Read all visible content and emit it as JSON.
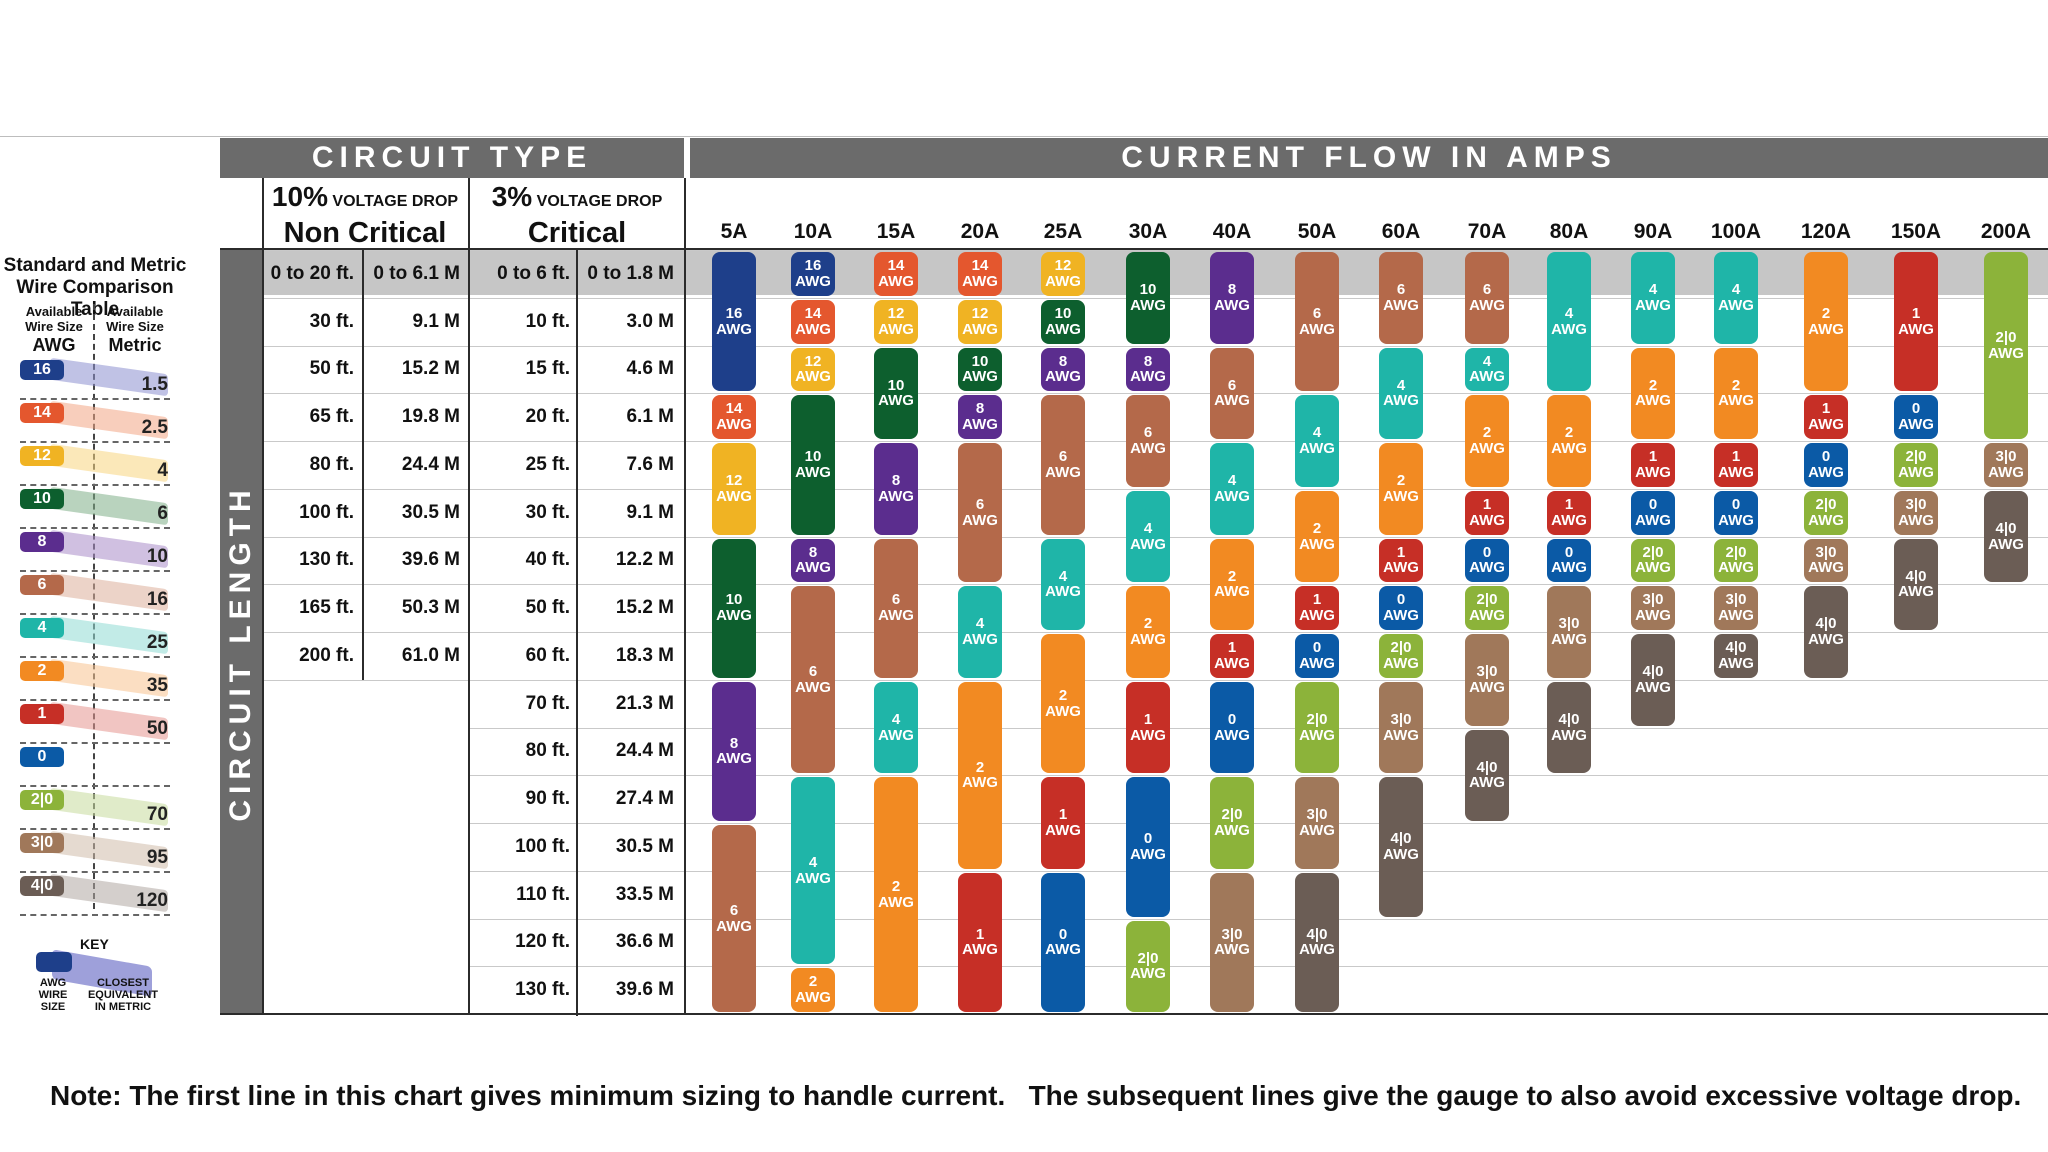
{
  "sidebar": {
    "title_line1": "Standard and Metric",
    "title_line2": "Wire Comparison Table",
    "col1_line1": "Available",
    "col1_line2": "Wire Size",
    "col1_head": "AWG",
    "col2_line1": "Available",
    "col2_line2": "Wire Size",
    "col2_head": "Metric",
    "key_title": "KEY",
    "key_left_line1": "AWG",
    "key_left_line2": "WIRE",
    "key_left_line3": "SIZE",
    "key_right_line1": "CLOSEST",
    "key_right_line2": "EQUIVALENT",
    "key_right_line3": "IN METRIC",
    "rows": [
      {
        "awg": "16",
        "metric": "1.5",
        "color": "#1e3f8a",
        "band": "#8d8fd0"
      },
      {
        "awg": "14",
        "metric": "2.5",
        "color": "#e4572e",
        "band": "#f3a585"
      },
      {
        "awg": "12",
        "metric": "4",
        "color": "#f0b323",
        "band": "#f7d680"
      },
      {
        "awg": "10",
        "metric": "6",
        "color": "#0d5f2e",
        "band": "#7fae88"
      },
      {
        "awg": "8",
        "metric": "10",
        "color": "#5b2d8e",
        "band": "#a98cc9"
      },
      {
        "awg": "6",
        "metric": "16",
        "color": "#b4694a",
        "band": "#dcae9a"
      },
      {
        "awg": "4",
        "metric": "25",
        "color": "#1fb5a8",
        "band": "#8fdad3"
      },
      {
        "awg": "2",
        "metric": "35",
        "color": "#f28a22",
        "band": "#f8c390"
      },
      {
        "awg": "1",
        "metric": "50",
        "color": "#c62f26",
        "band": "#e69690"
      },
      {
        "awg": "0",
        "metric": "",
        "color": "#0b5aa6",
        "band": ""
      },
      {
        "awg": "2|0",
        "metric": "70",
        "color": "#8cb33a",
        "band": "#c6da9c"
      },
      {
        "awg": "3|0",
        "metric": "95",
        "color": "#a0785a",
        "band": "#cfbba9"
      },
      {
        "awg": "4|0",
        "metric": "120",
        "color": "#6b5d55",
        "band": "#b0a8a3"
      }
    ]
  },
  "headers": {
    "circuit_type": "CIRCUIT TYPE",
    "current_flow": "CURRENT FLOW IN AMPS",
    "circuit_length": "CIRCUIT LENGTH",
    "noncrit_pct": "10%",
    "noncrit_small": "VOLTAGE DROP",
    "noncrit_label": "Non Critical",
    "crit_pct": "3%",
    "crit_small": "VOLTAGE DROP",
    "crit_label": "Critical"
  },
  "amps": [
    "5A",
    "10A",
    "15A",
    "20A",
    "25A",
    "30A",
    "40A",
    "50A",
    "60A",
    "70A",
    "80A",
    "90A",
    "100A",
    "120A",
    "150A",
    "200A"
  ],
  "noncritical_rows": [
    {
      "ft": "0 to 20 ft.",
      "m": "0 to 6.1 M"
    },
    {
      "ft": "30 ft.",
      "m": "9.1 M"
    },
    {
      "ft": "50 ft.",
      "m": "15.2 M"
    },
    {
      "ft": "65 ft.",
      "m": "19.8 M"
    },
    {
      "ft": "80 ft.",
      "m": "24.4 M"
    },
    {
      "ft": "100 ft.",
      "m": "30.5 M"
    },
    {
      "ft": "130 ft.",
      "m": "39.6 M"
    },
    {
      "ft": "165 ft.",
      "m": "50.3 M"
    },
    {
      "ft": "200 ft.",
      "m": "61.0 M"
    }
  ],
  "critical_rows": [
    {
      "ft": "0 to 6 ft.",
      "m": "0 to 1.8 M"
    },
    {
      "ft": "10 ft.",
      "m": "3.0 M"
    },
    {
      "ft": "15 ft.",
      "m": "4.6 M"
    },
    {
      "ft": "20 ft.",
      "m": "6.1 M"
    },
    {
      "ft": "25 ft.",
      "m": "7.6 M"
    },
    {
      "ft": "30 ft.",
      "m": "9.1 M"
    },
    {
      "ft": "40 ft.",
      "m": "12.2 M"
    },
    {
      "ft": "50 ft.",
      "m": "15.2 M"
    },
    {
      "ft": "60 ft.",
      "m": "18.3 M"
    },
    {
      "ft": "70 ft.",
      "m": "21.3 M"
    },
    {
      "ft": "80 ft.",
      "m": "24.4 M"
    },
    {
      "ft": "90 ft.",
      "m": "27.4 M"
    },
    {
      "ft": "100 ft.",
      "m": "30.5 M"
    },
    {
      "ft": "110 ft.",
      "m": "33.5 M"
    },
    {
      "ft": "120 ft.",
      "m": "36.6 M"
    },
    {
      "ft": "130 ft.",
      "m": "39.6 M"
    }
  ],
  "awg_unit": "AWG",
  "gauge_colors": {
    "16": "#1e3f8a",
    "14": "#e4572e",
    "12": "#f0b323",
    "10": "#0d5f2e",
    "8": "#5b2d8e",
    "6": "#b4694a",
    "4": "#1fb5a8",
    "2": "#f28a22",
    "1": "#c62f26",
    "0": "#0b5aa6",
    "2|0": "#8cb33a",
    "3|0": "#a0785a",
    "4|0": "#6b5d55"
  },
  "wire_columns": [
    {
      "amp": "5A",
      "segments": [
        {
          "g": "16",
          "from": 0,
          "to": 3
        },
        {
          "g": "14",
          "from": 3,
          "to": 4
        },
        {
          "g": "12",
          "from": 4,
          "to": 6
        },
        {
          "g": "10",
          "from": 6,
          "to": 9
        },
        {
          "g": "8",
          "from": 9,
          "to": 12
        },
        {
          "g": "6",
          "from": 12,
          "to": 16
        }
      ]
    },
    {
      "amp": "10A",
      "segments": [
        {
          "g": "16",
          "from": 0,
          "to": 1
        },
        {
          "g": "14",
          "from": 1,
          "to": 2
        },
        {
          "g": "12",
          "from": 2,
          "to": 3
        },
        {
          "g": "10",
          "from": 3,
          "to": 6
        },
        {
          "g": "8",
          "from": 6,
          "to": 7
        },
        {
          "g": "6",
          "from": 7,
          "to": 11
        },
        {
          "g": "4",
          "from": 11,
          "to": 15
        },
        {
          "g": "2",
          "from": 15,
          "to": 16
        }
      ]
    },
    {
      "amp": "15A",
      "segments": [
        {
          "g": "14",
          "from": 0,
          "to": 1
        },
        {
          "g": "12",
          "from": 1,
          "to": 2
        },
        {
          "g": "10",
          "from": 2,
          "to": 4
        },
        {
          "g": "8",
          "from": 4,
          "to": 6
        },
        {
          "g": "6",
          "from": 6,
          "to": 9
        },
        {
          "g": "4",
          "from": 9,
          "to": 11
        },
        {
          "g": "2",
          "from": 11,
          "to": 16
        }
      ]
    },
    {
      "amp": "20A",
      "segments": [
        {
          "g": "14",
          "from": 0,
          "to": 1
        },
        {
          "g": "12",
          "from": 1,
          "to": 2
        },
        {
          "g": "10",
          "from": 2,
          "to": 3
        },
        {
          "g": "8",
          "from": 3,
          "to": 4
        },
        {
          "g": "6",
          "from": 4,
          "to": 7
        },
        {
          "g": "4",
          "from": 7,
          "to": 9
        },
        {
          "g": "2",
          "from": 9,
          "to": 13
        },
        {
          "g": "1",
          "from": 13,
          "to": 16
        }
      ]
    },
    {
      "amp": "25A",
      "segments": [
        {
          "g": "12",
          "from": 0,
          "to": 1
        },
        {
          "g": "10",
          "from": 1,
          "to": 2
        },
        {
          "g": "8",
          "from": 2,
          "to": 3
        },
        {
          "g": "6",
          "from": 3,
          "to": 6
        },
        {
          "g": "4",
          "from": 6,
          "to": 8
        },
        {
          "g": "2",
          "from": 8,
          "to": 11
        },
        {
          "g": "1",
          "from": 11,
          "to": 13
        },
        {
          "g": "0",
          "from": 13,
          "to": 16
        }
      ]
    },
    {
      "amp": "30A",
      "segments": [
        {
          "g": "10",
          "from": 0,
          "to": 2
        },
        {
          "g": "8",
          "from": 2,
          "to": 3
        },
        {
          "g": "6",
          "from": 3,
          "to": 5
        },
        {
          "g": "4",
          "from": 5,
          "to": 7
        },
        {
          "g": "2",
          "from": 7,
          "to": 9
        },
        {
          "g": "1",
          "from": 9,
          "to": 11
        },
        {
          "g": "0",
          "from": 11,
          "to": 14
        },
        {
          "g": "2|0",
          "from": 14,
          "to": 16
        }
      ]
    },
    {
      "amp": "40A",
      "segments": [
        {
          "g": "8",
          "from": 0,
          "to": 2
        },
        {
          "g": "6",
          "from": 2,
          "to": 4
        },
        {
          "g": "4",
          "from": 4,
          "to": 6
        },
        {
          "g": "2",
          "from": 6,
          "to": 8
        },
        {
          "g": "1",
          "from": 8,
          "to": 9
        },
        {
          "g": "0",
          "from": 9,
          "to": 11
        },
        {
          "g": "2|0",
          "from": 11,
          "to": 13
        },
        {
          "g": "3|0",
          "from": 13,
          "to": 16
        }
      ]
    },
    {
      "amp": "50A",
      "segments": [
        {
          "g": "6",
          "from": 0,
          "to": 3
        },
        {
          "g": "4",
          "from": 3,
          "to": 5
        },
        {
          "g": "2",
          "from": 5,
          "to": 7
        },
        {
          "g": "1",
          "from": 7,
          "to": 8
        },
        {
          "g": "0",
          "from": 8,
          "to": 9
        },
        {
          "g": "2|0",
          "from": 9,
          "to": 11
        },
        {
          "g": "3|0",
          "from": 11,
          "to": 13
        },
        {
          "g": "4|0",
          "from": 13,
          "to": 16
        }
      ]
    },
    {
      "amp": "60A",
      "segments": [
        {
          "g": "6",
          "from": 0,
          "to": 2
        },
        {
          "g": "4",
          "from": 2,
          "to": 4
        },
        {
          "g": "2",
          "from": 4,
          "to": 6
        },
        {
          "g": "1",
          "from": 6,
          "to": 7
        },
        {
          "g": "0",
          "from": 7,
          "to": 8
        },
        {
          "g": "2|0",
          "from": 8,
          "to": 9
        },
        {
          "g": "3|0",
          "from": 9,
          "to": 11
        },
        {
          "g": "4|0",
          "from": 11,
          "to": 14
        }
      ]
    },
    {
      "amp": "70A",
      "segments": [
        {
          "g": "6",
          "from": 0,
          "to": 2
        },
        {
          "g": "4",
          "from": 2,
          "to": 3
        },
        {
          "g": "2",
          "from": 3,
          "to": 5
        },
        {
          "g": "1",
          "from": 5,
          "to": 6
        },
        {
          "g": "0",
          "from": 6,
          "to": 7
        },
        {
          "g": "2|0",
          "from": 7,
          "to": 8
        },
        {
          "g": "3|0",
          "from": 8,
          "to": 10
        },
        {
          "g": "4|0",
          "from": 10,
          "to": 12
        }
      ]
    },
    {
      "amp": "80A",
      "segments": [
        {
          "g": "4",
          "from": 0,
          "to": 3
        },
        {
          "g": "2",
          "from": 3,
          "to": 5
        },
        {
          "g": "1",
          "from": 5,
          "to": 6
        },
        {
          "g": "0",
          "from": 6,
          "to": 7
        },
        {
          "g": "3|0",
          "from": 7,
          "to": 9
        },
        {
          "g": "4|0",
          "from": 9,
          "to": 11
        }
      ]
    },
    {
      "amp": "90A",
      "segments": [
        {
          "g": "4",
          "from": 0,
          "to": 2
        },
        {
          "g": "2",
          "from": 2,
          "to": 4
        },
        {
          "g": "1",
          "from": 4,
          "to": 5
        },
        {
          "g": "0",
          "from": 5,
          "to": 6
        },
        {
          "g": "2|0",
          "from": 6,
          "to": 7
        },
        {
          "g": "3|0",
          "from": 7,
          "to": 8
        },
        {
          "g": "4|0",
          "from": 8,
          "to": 10
        }
      ]
    },
    {
      "amp": "100A",
      "segments": [
        {
          "g": "4",
          "from": 0,
          "to": 2
        },
        {
          "g": "2",
          "from": 2,
          "to": 4
        },
        {
          "g": "1",
          "from": 4,
          "to": 5
        },
        {
          "g": "0",
          "from": 5,
          "to": 6
        },
        {
          "g": "2|0",
          "from": 6,
          "to": 7
        },
        {
          "g": "3|0",
          "from": 7,
          "to": 8
        },
        {
          "g": "4|0",
          "from": 8,
          "to": 9
        }
      ]
    },
    {
      "amp": "120A",
      "segments": [
        {
          "g": "2",
          "from": 0,
          "to": 3
        },
        {
          "g": "1",
          "from": 3,
          "to": 4
        },
        {
          "g": "0",
          "from": 4,
          "to": 5
        },
        {
          "g": "2|0",
          "from": 5,
          "to": 6
        },
        {
          "g": "3|0",
          "from": 6,
          "to": 7
        },
        {
          "g": "4|0",
          "from": 7,
          "to": 9
        }
      ]
    },
    {
      "amp": "150A",
      "segments": [
        {
          "g": "1",
          "from": 0,
          "to": 3
        },
        {
          "g": "0",
          "from": 3,
          "to": 4
        },
        {
          "g": "2|0",
          "from": 4,
          "to": 5
        },
        {
          "g": "3|0",
          "from": 5,
          "to": 6
        },
        {
          "g": "4|0",
          "from": 6,
          "to": 8
        }
      ]
    },
    {
      "amp": "200A",
      "segments": [
        {
          "g": "2|0",
          "from": 0,
          "to": 4
        },
        {
          "g": "3|0",
          "from": 4,
          "to": 5
        },
        {
          "g": "4|0",
          "from": 5,
          "to": 7
        }
      ]
    }
  ],
  "footer_note": "Note: The first line in this chart gives minimum sizing to handle current.   The subsequent lines give the gauge to also avoid excessive voltage drop."
}
